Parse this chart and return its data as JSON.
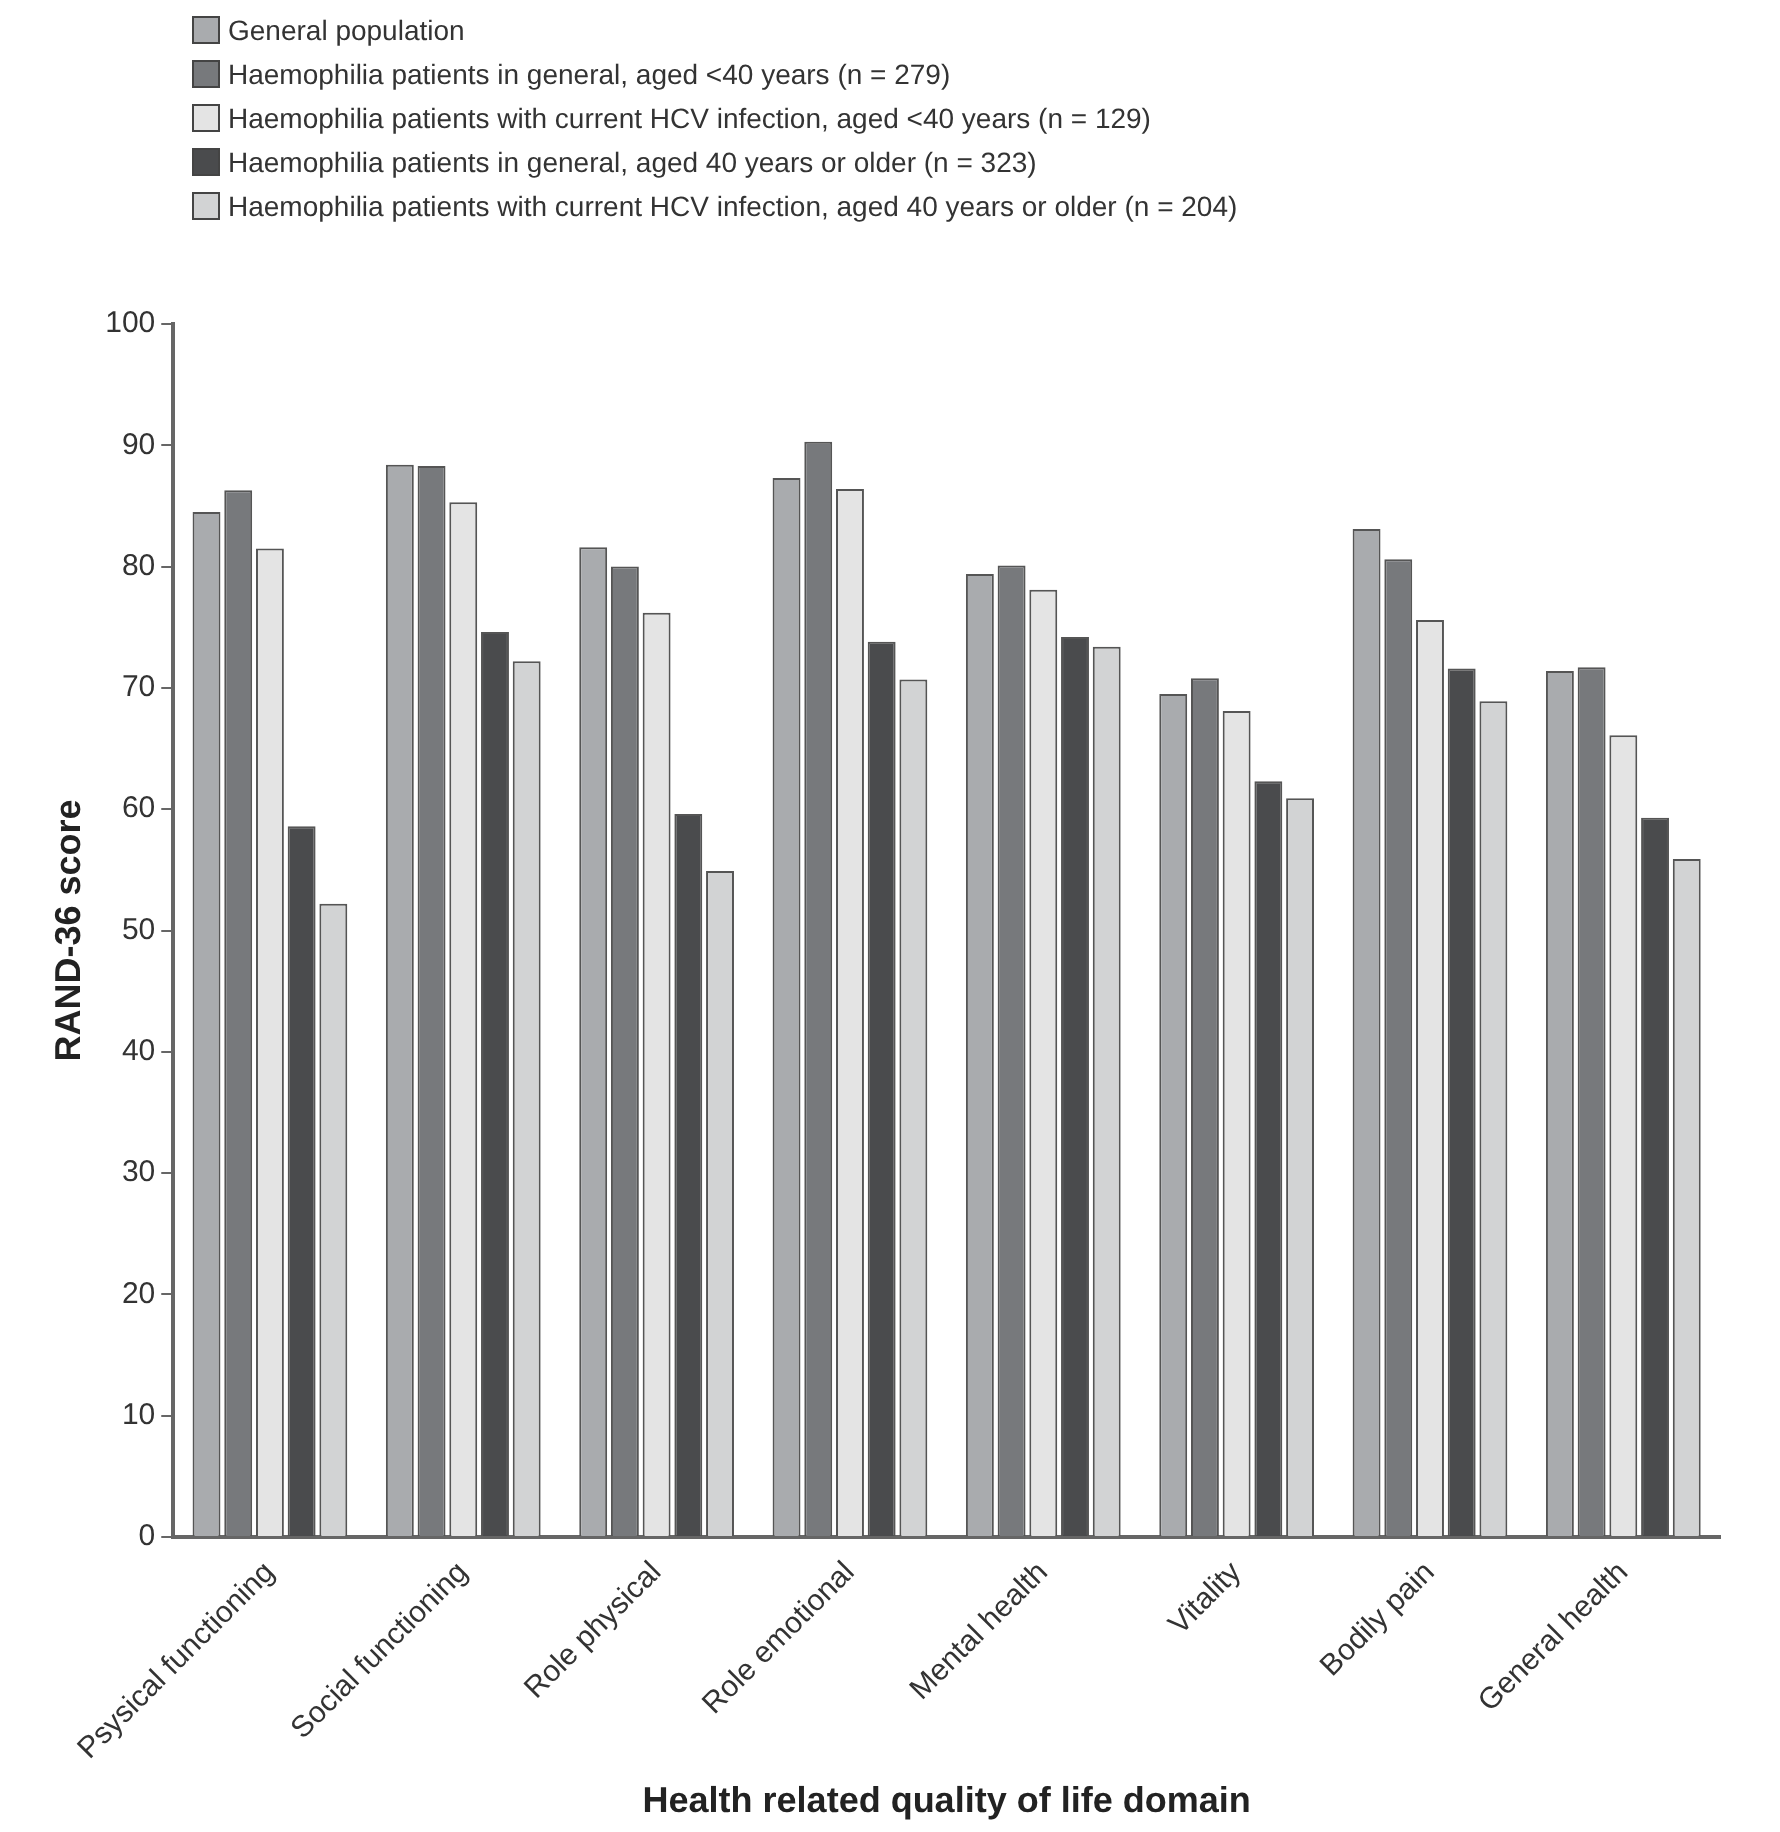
{
  "chart_data": {
    "type": "bar",
    "xlabel": "Health related quality of life domain",
    "ylabel": "RAND-36 score",
    "categories": [
      "Psysical functioning",
      "Social functioning",
      "Role physical",
      "Role emotional",
      "Mental health",
      "Vitality",
      "Bodily pain",
      "General health"
    ],
    "series": [
      {
        "name": "General population",
        "color": "#a9abae",
        "values": [
          84.5,
          88.4,
          81.6,
          87.3,
          79.4,
          69.5,
          83.1,
          71.4
        ]
      },
      {
        "name": "Haemophilia patients in general, aged <40 years (n = 279)",
        "color": "#77797c",
        "values": [
          86.3,
          88.3,
          80.0,
          90.3,
          80.1,
          70.8,
          80.6,
          71.7
        ]
      },
      {
        "name": "Haemophilia patients with current HCV infection, aged <40 years (n = 129)",
        "color": "#e4e4e4",
        "values": [
          81.5,
          85.3,
          76.2,
          86.4,
          78.1,
          68.1,
          75.6,
          66.1
        ]
      },
      {
        "name": "Haemophilia patients in general, aged 40 years or older (n = 323)",
        "color": "#4a4b4d",
        "values": [
          58.6,
          74.6,
          59.6,
          73.8,
          74.2,
          62.3,
          71.6,
          59.3
        ]
      },
      {
        "name": "Haemophilia patients with current HCV infection, aged 40 years or older (n = 204)",
        "color": "#d2d3d4",
        "values": [
          52.2,
          72.2,
          54.9,
          70.7,
          73.4,
          60.9,
          68.9,
          55.9
        ]
      }
    ],
    "ylim": [
      0,
      100
    ],
    "yticks": [
      0,
      10,
      20,
      30,
      40,
      50,
      60,
      70,
      80,
      90,
      100
    ],
    "grid": false,
    "legend": "top left"
  }
}
